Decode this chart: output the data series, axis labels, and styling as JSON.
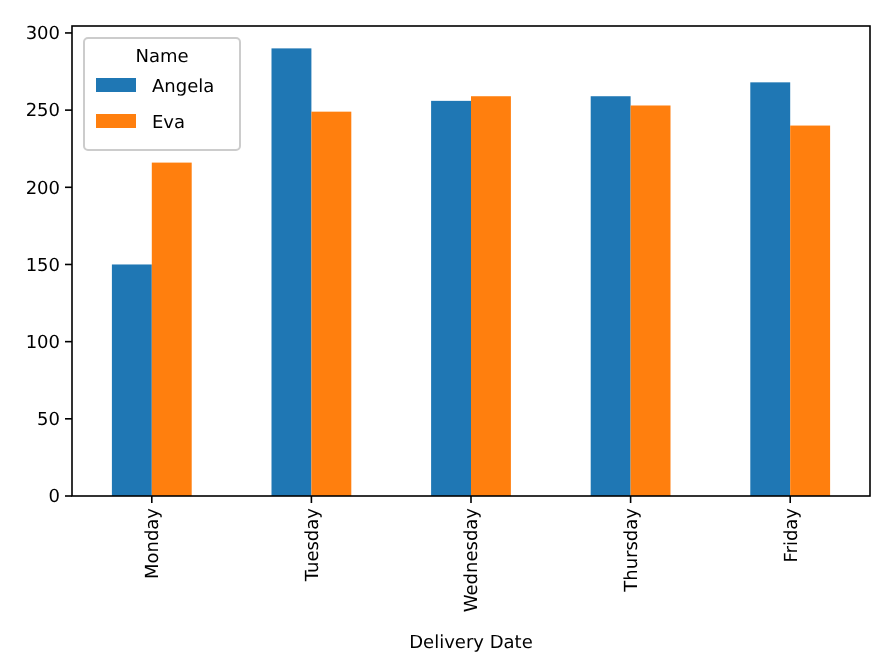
{
  "chart_data": {
    "type": "bar",
    "xlabel": "Delivery Date",
    "legend_title": "Name",
    "categories": [
      "Monday",
      "Tuesday",
      "Wednesday",
      "Thursday",
      "Friday"
    ],
    "series": [
      {
        "name": "Angela",
        "color": "#1f77b4",
        "values": [
          150,
          290,
          256,
          259,
          268
        ]
      },
      {
        "name": "Eva",
        "color": "#ff7f0e",
        "values": [
          216,
          249,
          259,
          253,
          240
        ]
      }
    ],
    "ylim": [
      0,
      304.5
    ],
    "yticks": [
      0,
      50,
      100,
      150,
      200,
      250,
      300
    ],
    "legend": "top left",
    "grid": false
  }
}
